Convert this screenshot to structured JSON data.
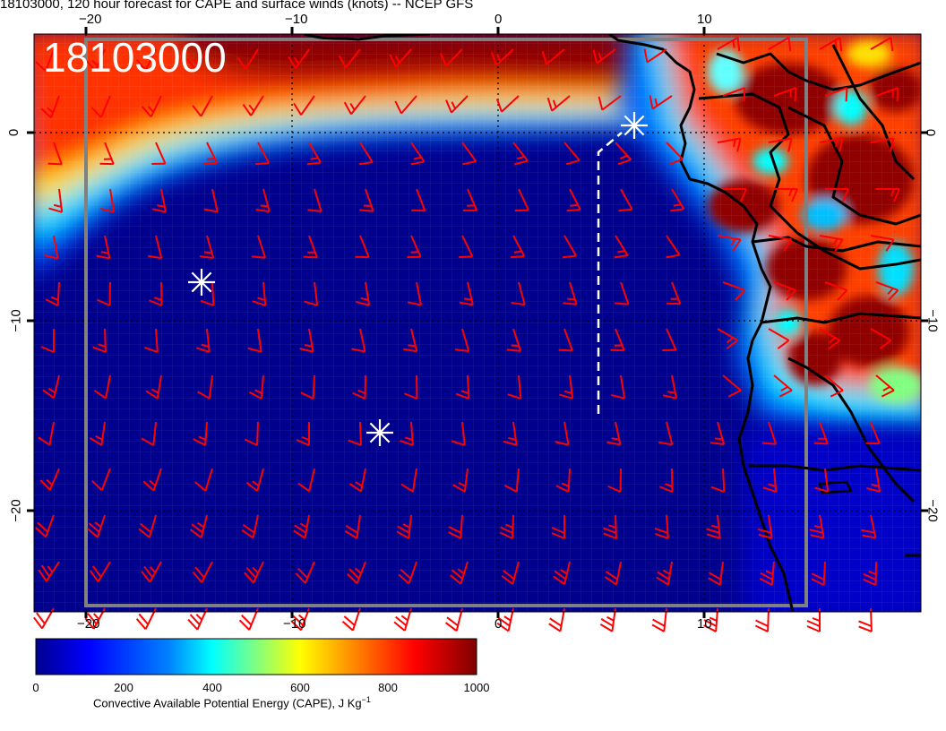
{
  "title": "18103000, 120 hour forecast for CAPE and surface winds (knots) -- NCEP GFS",
  "stamp": "18103000",
  "axes": {
    "lon_ticks_top": [
      "−20",
      "−10",
      "0",
      "10"
    ],
    "lon_ticks_bottom": [
      "−20",
      "−10",
      "0",
      "10"
    ],
    "lat_ticks_left": [
      "0",
      "−10",
      "−20"
    ],
    "lat_ticks_right": [
      "0",
      "−10",
      "−20"
    ]
  },
  "colorbar": {
    "ticks": [
      "0",
      "200",
      "400",
      "600",
      "800",
      "1000"
    ],
    "label": "Convective Available Potential Energy (CAPE), J Kg",
    "label_sup": "−1",
    "colors": [
      "#00008f",
      "#0000ff",
      "#0080ff",
      "#00ffff",
      "#80ff80",
      "#ffff00",
      "#ff8000",
      "#ff0000",
      "#800000"
    ]
  },
  "colors": {
    "barb": "#ff0000",
    "coast": "#000000",
    "marker": "#ffffff",
    "box": "#808080"
  },
  "markers": [
    "star-marker",
    "star-marker",
    "star-marker"
  ]
}
